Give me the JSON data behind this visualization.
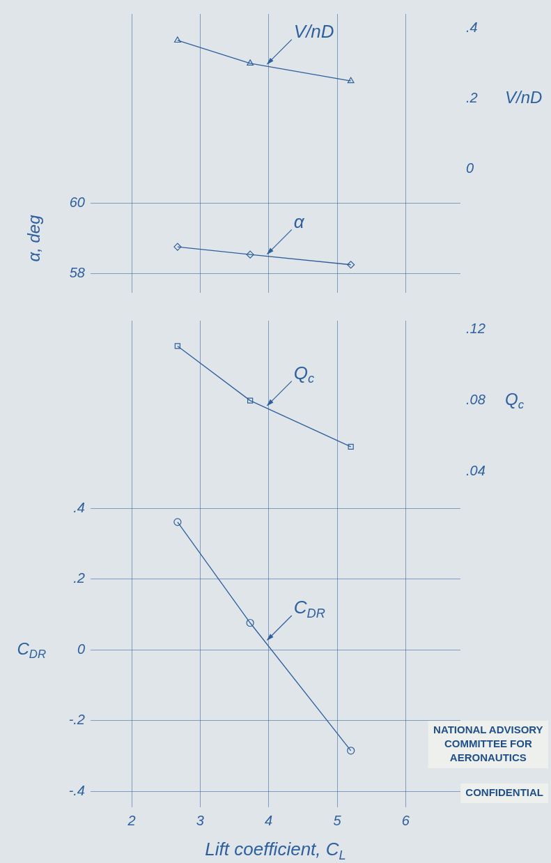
{
  "chart_data": [
    {
      "type": "line",
      "ylabel": "α, deg",
      "y2label": "V/nD",
      "x": [
        2.67,
        3.73,
        5.2
      ],
      "xlim": [
        1.4,
        6.8
      ],
      "xticks": [
        2,
        3,
        4,
        5,
        6
      ],
      "ylim": [
        57.45,
        65.4
      ],
      "yticks": [
        58,
        60
      ],
      "y2lim": [
        -0.35,
        0.44
      ],
      "y2ticks": [
        0,
        {
          "value": 0.2,
          "label": ".2"
        },
        {
          "value": 0.4,
          "label": ".4"
        }
      ],
      "series": [
        {
          "name": "V/nD",
          "color": "#2e5f9e",
          "axis": "y2",
          "marker": "triangle",
          "values": [
            0.365,
            0.3,
            0.25
          ]
        },
        {
          "name": "α",
          "color": "#2e5f9e",
          "marker": "diamond",
          "values": [
            58.76,
            58.54,
            58.25
          ]
        }
      ],
      "grid": true,
      "tick_labels": "y",
      "line_style": "solid"
    },
    {
      "type": "line",
      "xlabel": "Lift coefficient, C$_{L}$",
      "ylabel": "C$_{DR}$",
      "y2label": "Q$_{c}$",
      "x": [
        2.67,
        3.73,
        5.2
      ],
      "xlim": [
        1.4,
        6.8
      ],
      "xticks": [
        2,
        3,
        4,
        5,
        6
      ],
      "ylim": [
        -0.445,
        0.93
      ],
      "yticks": [
        {
          "value": -0.4,
          "label": "-.4"
        },
        {
          "value": -0.2,
          "label": "-.2"
        },
        0,
        {
          "value": 0.2,
          "label": ".2"
        },
        {
          "value": 0.4,
          "label": ".4"
        }
      ],
      "y2lim": [
        -0.149,
        0.125
      ],
      "y2ticks": [
        {
          "value": 0.04,
          "label": ".04"
        },
        {
          "value": 0.08,
          "label": ".08"
        },
        {
          "value": 0.12,
          "label": ".12"
        }
      ],
      "series": [
        {
          "name": "Q$_{c}$",
          "color": "#2e5f9e",
          "axis": "y2",
          "marker": "square",
          "values": [
            0.1107,
            0.08,
            0.054
          ]
        },
        {
          "name": "C$_{DR}$",
          "color": "#2e5f9e",
          "marker": "circle",
          "values": [
            0.361,
            0.076,
            -0.285
          ]
        }
      ],
      "grid": true,
      "line_style": "solid",
      "annotations": [
        "NATIONAL ADVISORY COMMITTEE FOR AERONAUTICS",
        "CONFIDENTIAL"
      ]
    }
  ]
}
